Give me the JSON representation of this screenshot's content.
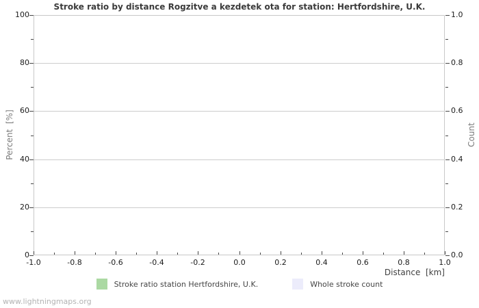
{
  "watermark": "www.lightningmaps.org",
  "chart_data": {
    "type": "line",
    "title": "Stroke ratio by distance Rogzitve a kezdetek ota for station: Hertfordshire, U.K.",
    "x_axis": {
      "label": "Distance  [km]",
      "min": -1.0,
      "max": 1.0,
      "major_step": 0.2,
      "minor_step": 0.1,
      "decimals": 1,
      "tick_labels": [
        "-1.0",
        "-0.8",
        "-0.6",
        "-0.4",
        "-0.2",
        "0.0",
        "0.2",
        "0.4",
        "0.6",
        "0.8",
        "1.0"
      ]
    },
    "y_left": {
      "label": "Percent  [%]",
      "min": 0,
      "max": 100,
      "major_step": 20,
      "minor_step": 10,
      "decimals": 0,
      "tick_labels": [
        "0",
        "20",
        "40",
        "60",
        "80",
        "100"
      ]
    },
    "y_right": {
      "label": "Count",
      "min": 0.0,
      "max": 1.0,
      "major_step": 0.2,
      "minor_step": 0.1,
      "decimals": 1,
      "tick_labels": [
        "0.0",
        "0.2",
        "0.4",
        "0.6",
        "0.8",
        "1.0"
      ]
    },
    "grid": "horizontal-major",
    "legend_position": "bottom-center",
    "series": [
      {
        "name": "Stroke ratio station Hertfordshire, U.K.",
        "color": "#abd9a3",
        "axis": "left",
        "x": [],
        "values": []
      },
      {
        "name": "Whole stroke count",
        "color": "#ececfb",
        "axis": "right",
        "x": [],
        "values": []
      }
    ],
    "colors": {
      "border": "#c8c8c8",
      "grid": "#cccccc",
      "tick": "#444444",
      "title": "#3b3b3b",
      "axis_name": "#7c7c7c",
      "watermark": "#b3b3b3"
    }
  }
}
